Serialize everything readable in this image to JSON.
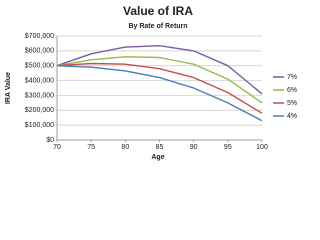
{
  "chart_data": {
    "type": "line",
    "title": "Value of IRA",
    "subtitle": "By Rate of Return",
    "x_label": "Age",
    "y_label": "IRA Value",
    "x": [
      70,
      75,
      80,
      85,
      90,
      95,
      100
    ],
    "series": [
      {
        "name": "7%",
        "color": "#7e5aa2",
        "values": [
          500000,
          580000,
          625000,
          635000,
          600000,
          500000,
          310000
        ]
      },
      {
        "name": "6%",
        "color": "#98bb4a",
        "values": [
          500000,
          540000,
          560000,
          555000,
          510000,
          410000,
          250000
        ]
      },
      {
        "name": "5%",
        "color": "#c0504d",
        "values": [
          500000,
          515000,
          510000,
          480000,
          420000,
          320000,
          180000
        ]
      },
      {
        "name": "4%",
        "color": "#4a7dbb",
        "values": [
          500000,
          490000,
          465000,
          420000,
          350000,
          250000,
          130000
        ]
      }
    ],
    "xlim": [
      70,
      100
    ],
    "xticks": [
      70,
      75,
      80,
      85,
      90,
      95,
      100
    ],
    "ylim": [
      0,
      700000
    ],
    "yticks": [
      {
        "value": 0,
        "label": "$0"
      },
      {
        "value": 100000,
        "label": "$100,000"
      },
      {
        "value": 200000,
        "label": "$200,000"
      },
      {
        "value": 300000,
        "label": "$300,000"
      },
      {
        "value": 400000,
        "label": "$400,000"
      },
      {
        "value": 500000,
        "label": "$500,000"
      },
      {
        "value": 600000,
        "label": "$600,000"
      },
      {
        "value": 700000,
        "label": "$700,000"
      }
    ],
    "grid": true,
    "legend": "right"
  }
}
